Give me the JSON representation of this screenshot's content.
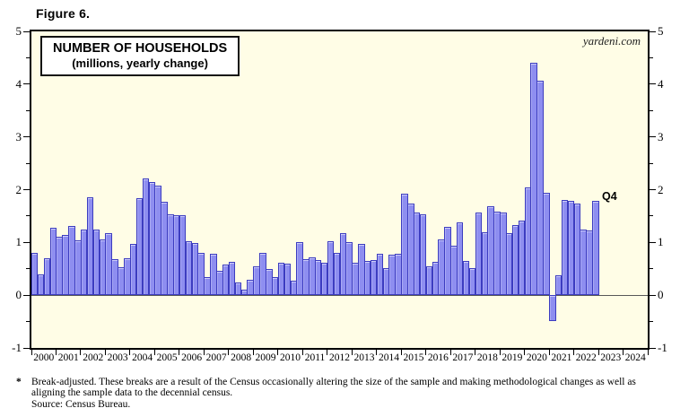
{
  "figure_label": "Figure 6.",
  "watermark": "yardeni.com",
  "chart_data": {
    "type": "bar",
    "title": "NUMBER OF HOUSEHOLDS",
    "subtitle": "(millions, yearly change)",
    "frequency": "quarterly",
    "x_start": "2000Q1",
    "x_end": "2022Q4",
    "last_point_label": "Q4",
    "x_axis_years": [
      "2000",
      "2001",
      "2002",
      "2003",
      "2004",
      "2005",
      "2006",
      "2007",
      "2008",
      "2009",
      "2010",
      "2011",
      "2012",
      "2013",
      "2014",
      "2015",
      "2016",
      "2017",
      "2018",
      "2019",
      "2020",
      "2021",
      "2022",
      "2023",
      "2024"
    ],
    "y_ticks": [
      5,
      4,
      3,
      2,
      1,
      0,
      -1
    ],
    "ylim": [
      -1,
      5
    ],
    "xlabel": "",
    "ylabel": "",
    "grid": "zero-line-only",
    "legend": "none",
    "series": [
      {
        "name": "Number of households, yearly change (millions)",
        "values": [
          0.81,
          0.39,
          0.7,
          1.28,
          1.11,
          1.14,
          1.32,
          1.04,
          1.25,
          1.85,
          1.25,
          1.06,
          1.18,
          0.69,
          0.53,
          0.7,
          0.98,
          1.84,
          2.21,
          2.15,
          2.07,
          1.77,
          1.53,
          1.52,
          1.51,
          1.03,
          0.99,
          0.81,
          0.35,
          0.79,
          0.47,
          0.58,
          0.63,
          0.24,
          0.1,
          0.3,
          0.55,
          0.81,
          0.49,
          0.35,
          0.61,
          0.59,
          0.27,
          1.0,
          0.69,
          0.72,
          0.66,
          0.62,
          1.03,
          0.8,
          1.18,
          1.01,
          0.61,
          0.97,
          0.65,
          0.67,
          0.78,
          0.52,
          0.76,
          0.79,
          1.93,
          1.74,
          1.57,
          1.53,
          0.54,
          0.63,
          1.06,
          1.29,
          0.93,
          1.38,
          0.65,
          0.52,
          1.57,
          1.2,
          1.69,
          1.59,
          1.57,
          1.17,
          1.33,
          1.42,
          2.04,
          4.4,
          4.06,
          1.94,
          -0.49,
          0.38,
          1.8,
          1.78,
          1.73,
          1.25,
          1.22,
          1.79
        ]
      }
    ],
    "colors": {
      "plot_background": "#FFFDE6",
      "bar_fill": "#8E8EF0",
      "bar_border": "#3C3CC0",
      "zero_line": "#585858",
      "axis": "#000000"
    }
  },
  "footnote": {
    "marker": "*",
    "text": "Break-adjusted. These breaks are a result of the Census occasionally altering the size of the sample and making methodological changes as well as aligning the sample data to the decennial census.",
    "source": "Source: Census Bureau."
  }
}
